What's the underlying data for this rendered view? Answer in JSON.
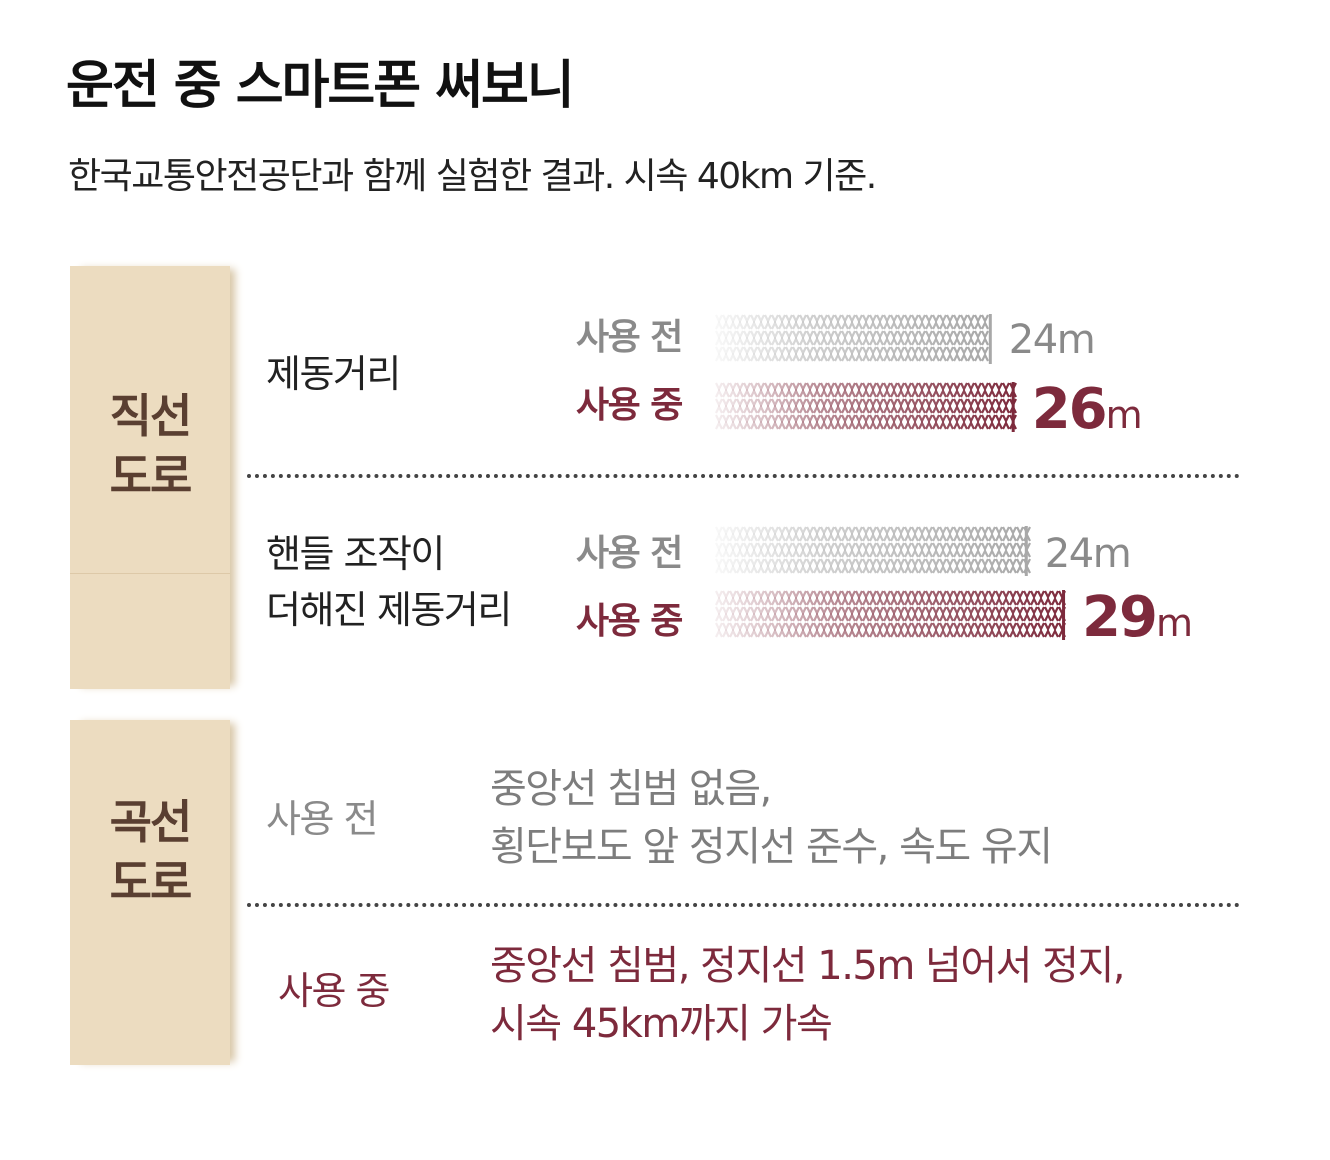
{
  "title": "운전 중 스마트폰 써보니",
  "subtitle": "한국교통안전공단과 함께 실험한 결과. 시속 40km 기준.",
  "colors": {
    "before": "#8a8a8a",
    "during": "#7d2a3c",
    "side_bg": "#ecdcc0",
    "side_text": "#5a3f31"
  },
  "straight": {
    "label_line1": "직선",
    "label_line2": "도로",
    "rows": [
      {
        "label_lines": [
          "제동거리"
        ],
        "before_tag": "사용 전",
        "during_tag": "사용 중",
        "before_value": 24,
        "during_value": 26,
        "before_text": "24m",
        "during_num": "26",
        "during_unit": "m"
      },
      {
        "label_lines": [
          "핸들 조작이",
          "더해진 제동거리"
        ],
        "before_tag": "사용 전",
        "during_tag": "사용 중",
        "before_value": 24,
        "during_value": 29,
        "before_text": "24m",
        "during_num": "29",
        "during_unit": "m"
      }
    ]
  },
  "curve": {
    "label_line1": "곡선",
    "label_line2": "도로",
    "before_tag": "사용 전",
    "before_lines": [
      "중앙선 침범 없음,",
      "횡단보도 앞 정지선 준수, 속도 유지"
    ],
    "during_tag": "사용 중",
    "during_lines": [
      "중앙선 침범, 정지선 1.5m 넘어서 정지,",
      "시속 45km까지 가속"
    ]
  },
  "chart_data": {
    "type": "bar",
    "title": "운전 중 스마트폰 써보니",
    "subtitle": "한국교통안전공단과 함께 실험한 결과. 시속 40km 기준.",
    "categories": [
      "제동거리",
      "핸들 조작이 더해진 제동거리"
    ],
    "series": [
      {
        "name": "사용 전",
        "values": [
          24,
          24
        ]
      },
      {
        "name": "사용 중",
        "values": [
          26,
          29
        ]
      }
    ],
    "unit": "m",
    "orientation": "horizontal"
  }
}
